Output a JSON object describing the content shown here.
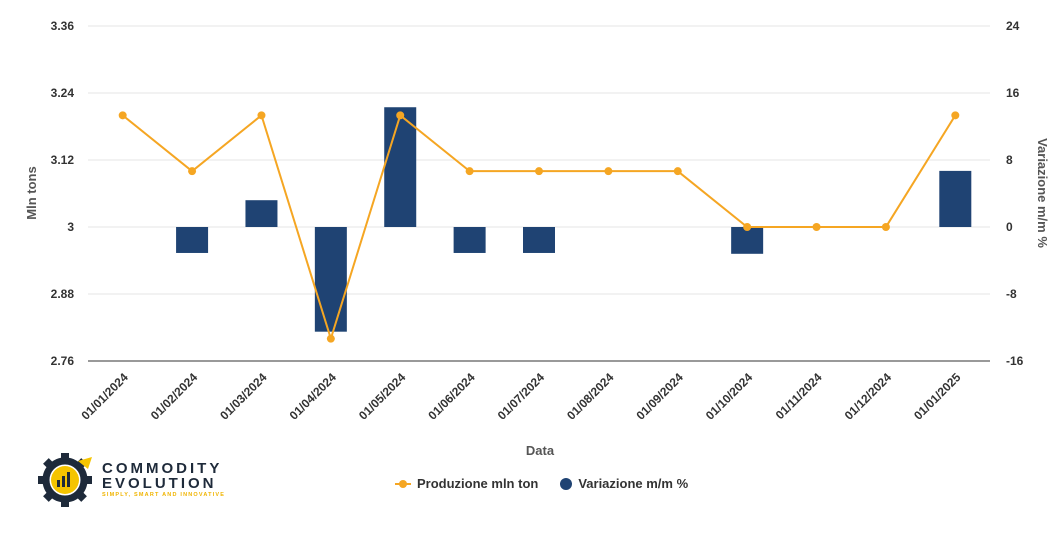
{
  "chart_data": {
    "type": "bar+line",
    "xlabel": "Data",
    "categories": [
      "01/01/2024",
      "01/02/2024",
      "01/03/2024",
      "01/04/2024",
      "01/05/2024",
      "01/06/2024",
      "01/07/2024",
      "01/08/2024",
      "01/09/2024",
      "01/10/2024",
      "01/11/2024",
      "01/12/2024",
      "01/01/2025"
    ],
    "left_axis": {
      "label": "Mln tons",
      "min": 2.76,
      "max": 3.36,
      "ticks": [
        "2.76",
        "2.88",
        "3",
        "3.12",
        "3.24",
        "3.36"
      ]
    },
    "right_axis": {
      "label": "Variazione m/m %",
      "min": -16,
      "max": 24,
      "ticks": [
        "-16",
        "-8",
        "0",
        "8",
        "16",
        "24"
      ]
    },
    "series": [
      {
        "name": "Produzione mln ton",
        "kind": "line",
        "axis": "left",
        "color": "#f5a623",
        "values": [
          3.2,
          3.1,
          3.2,
          2.8,
          3.2,
          3.1,
          3.1,
          3.1,
          3.1,
          3.0,
          3.0,
          3.0,
          3.2
        ]
      },
      {
        "name": "Variazione m/m %",
        "kind": "bar",
        "axis": "right",
        "color": "#1f4373",
        "values": [
          0,
          -3.1,
          3.2,
          -12.5,
          14.3,
          -3.1,
          -3.1,
          0,
          0,
          -3.2,
          0,
          0,
          6.7
        ]
      }
    ],
    "grid": true,
    "legend_position": "bottom-center"
  },
  "logo": {
    "line1": "COMMODITY",
    "line2": "EVOLUTION",
    "tagline": "SIMPLY, SMART AND INNOVATIVE"
  }
}
